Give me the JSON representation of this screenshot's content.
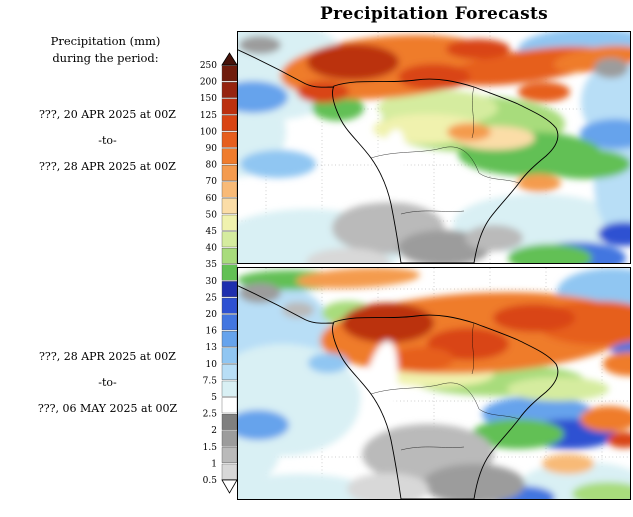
{
  "title": "Precipitation Forecasts",
  "sidebar": {
    "header_line1": "Precipitation (mm)",
    "header_line2": "during the period:",
    "period1": {
      "start": "???, 20 APR 2025 at 00Z",
      "separator": "-to-",
      "end": "???, 28 APR 2025 at 00Z"
    },
    "period2": {
      "start": "???, 28 APR 2025 at 00Z",
      "separator": "-to-",
      "end": "???, 06 MAY 2025 at 00Z"
    }
  },
  "colorbar": {
    "labels": [
      "250",
      "200",
      "150",
      "125",
      "100",
      "90",
      "80",
      "70",
      "60",
      "50",
      "45",
      "40",
      "35",
      "30",
      "25",
      "20",
      "16",
      "13",
      "10",
      "7.5",
      "5",
      "2.5",
      "2",
      "1.5",
      "1",
      "0.5"
    ],
    "segment_colors": [
      "#701c0c",
      "#962410",
      "#bb3010",
      "#d94413",
      "#e65e1e",
      "#ef7c2c",
      "#f49b4e",
      "#f8ba77",
      "#fbdda7",
      "#f0f2ae",
      "#d5ec9f",
      "#a8dc7c",
      "#62c054",
      "#1f2fae",
      "#2d51d2",
      "#4276e0",
      "#66a3ec",
      "#90c6f2",
      "#b8def6",
      "#d9f0f4",
      "#ffffff",
      "#808080",
      "#9c9c9c",
      "#bababa",
      "#d8d8d8"
    ],
    "top_arrow_color": "#47130a",
    "bottom_arrow_color": "#ffffff"
  },
  "maps": {
    "background": "#ffffff",
    "coastline_color": "#000000",
    "panel_top": "period-1-forecast-map",
    "panel_bottom": "period-2-forecast-map"
  }
}
